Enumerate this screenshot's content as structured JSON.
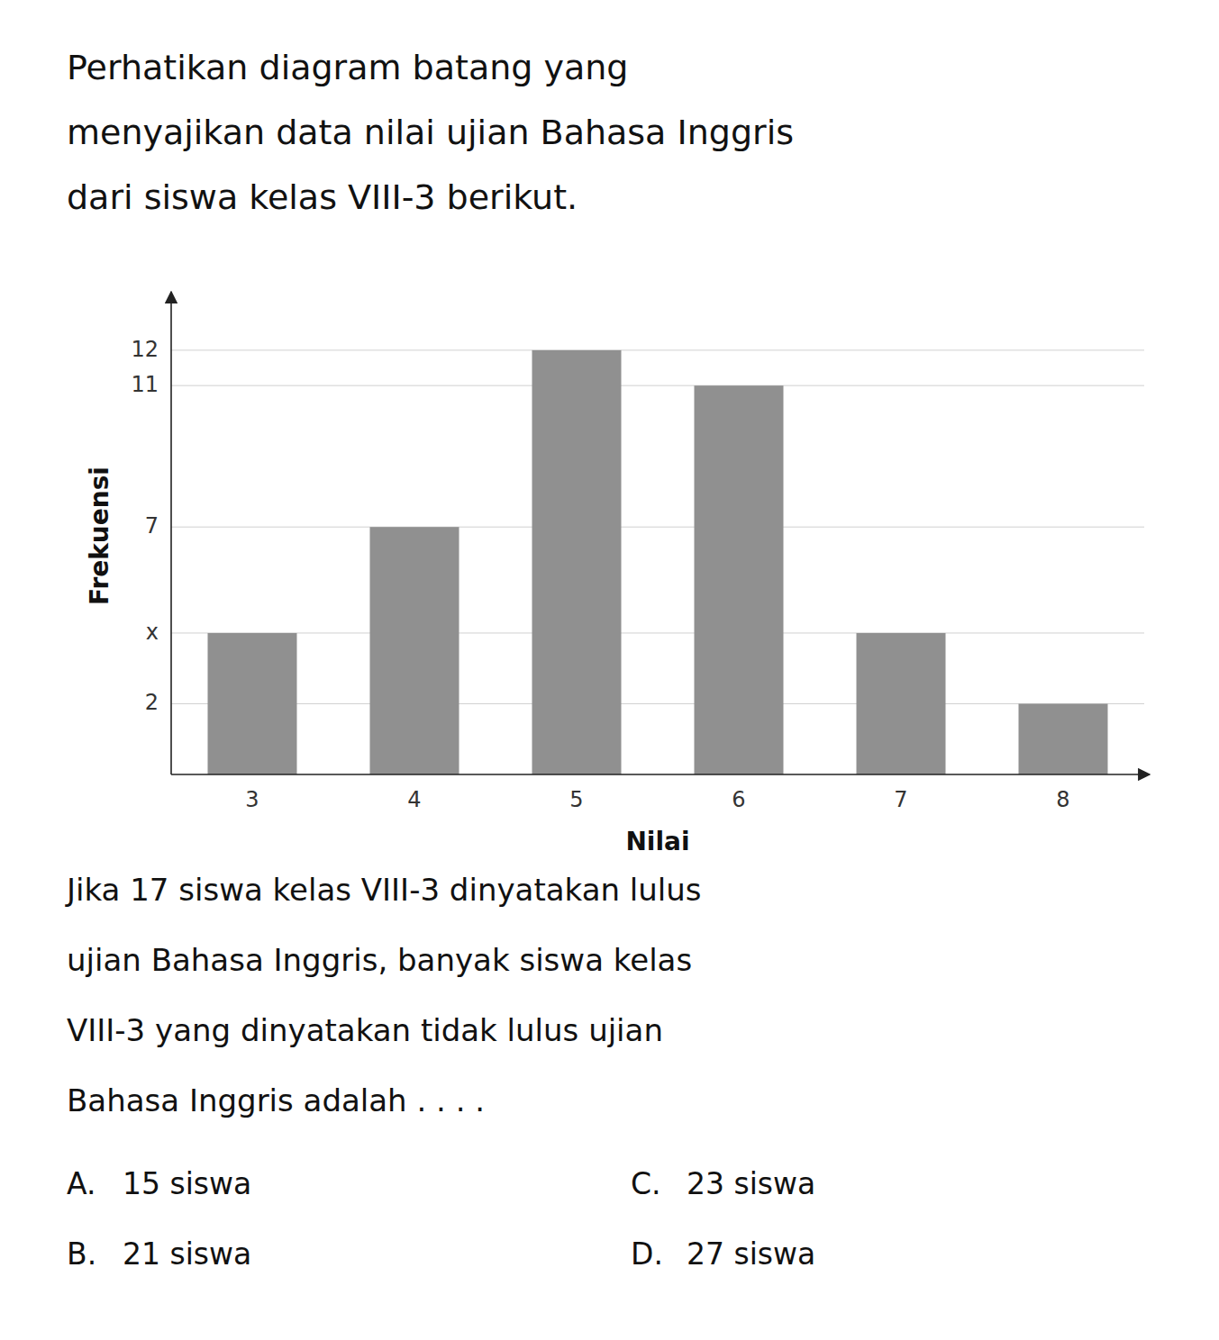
{
  "chart_data": {
    "type": "bar",
    "title": "Perhatikan diagram batang yang\nmenyajikan data nilai ujian Bahasa Inggris\ndari siswa kelas VIII-3 berikut.",
    "x_label": "Nilai",
    "y_label": "Frekuensi",
    "categories": [
      3,
      4,
      5,
      6,
      7,
      8
    ],
    "values": [
      4,
      7,
      12,
      11,
      4,
      2
    ],
    "color": "#909090",
    "ylim": [
      0,
      13.5
    ],
    "yticks": [
      2,
      {
        "value": 4,
        "label": "x"
      },
      7,
      11,
      12
    ],
    "grid": true,
    "annotations": [
      "Jika 17 siswa kelas VIII-3 dinyatakan lulus",
      "ujian Bahasa Inggris, banyak siswa kelas",
      "VIII-3 yang dinyatakan tidak lulus ujian",
      "Bahasa Inggris adalah . . . .",
      "A.",
      "15 siswa",
      "C.",
      "23 siswa",
      "B.",
      "21 siswa",
      "D.",
      "27 siswa"
    ]
  }
}
